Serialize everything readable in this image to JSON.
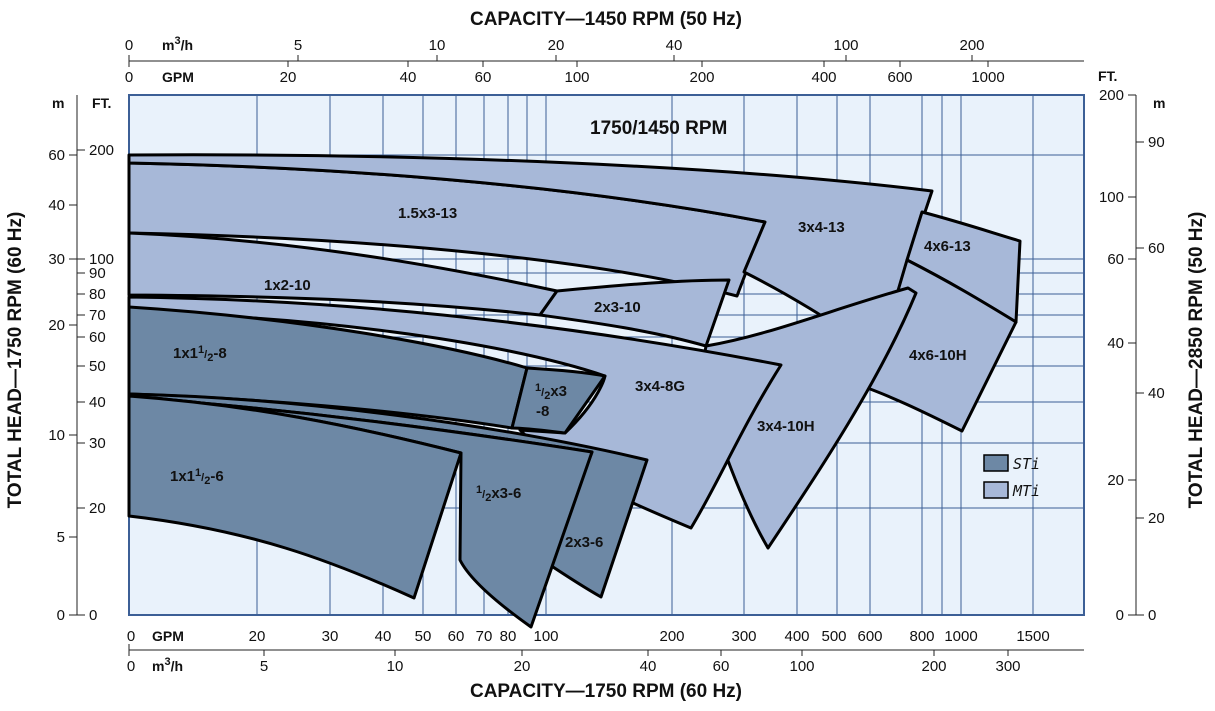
{
  "chart_data": {
    "type": "area",
    "title": "1750/1450 RPM",
    "top_axis_title": "CAPACITY—1450 RPM (50 Hz)",
    "bottom_axis_title": "CAPACITY—1750 RPM (60 Hz)",
    "left_axis_title": "TOTAL HEAD—1750 RPM (60 Hz)",
    "right_axis_title": "TOTAL HEAD—2850 RPM (50 Hz)",
    "scale": "log-log",
    "grid": true,
    "unit_labels": {
      "top_m3h": "m³/h",
      "top_gpm": "GPM",
      "bottom_gpm": "GPM",
      "bottom_m3h": "m³/h",
      "left_m": "m",
      "left_ft": "FT.",
      "right_ft": "FT.",
      "right_m": "m"
    },
    "bottom_gpm_ticks": [
      "0",
      "20",
      "30",
      "40",
      "50",
      "60",
      "70",
      "80",
      "100",
      "200",
      "300",
      "400",
      "500",
      "600",
      "800",
      "1000",
      "1500"
    ],
    "bottom_m3h_ticks": [
      "0",
      "5",
      "10",
      "20",
      "40",
      "60",
      "100",
      "200",
      "300"
    ],
    "top_m3h_ticks": [
      "0",
      "5",
      "10",
      "20",
      "40",
      "100",
      "200"
    ],
    "top_gpm_ticks": [
      "0",
      "20",
      "40",
      "60",
      "100",
      "200",
      "400",
      "600",
      "1000"
    ],
    "left_ft_ticks": [
      "0",
      "20",
      "30",
      "40",
      "50",
      "60",
      "70",
      "80",
      "90",
      "100",
      "200"
    ],
    "left_m_ticks": [
      "0",
      "5",
      "10",
      "20",
      "30",
      "40",
      "60"
    ],
    "right_ft_ticks": [
      "0",
      "20",
      "40",
      "60",
      "100",
      "200"
    ],
    "right_m_ticks": [
      "0",
      "20",
      "40",
      "60",
      "90"
    ],
    "legend": [
      {
        "name": "STi",
        "color": "#6d88a5"
      },
      {
        "name": "MTi",
        "color": "#a7b8d8"
      }
    ],
    "series": [
      {
        "name": "1.5x3-13",
        "group": "MTi",
        "gpm": [
          0,
          110,
          300
        ],
        "head_ft": [
          188,
          165,
          104
        ]
      },
      {
        "name": "3x4-13",
        "group": "MTi",
        "gpm": [
          0,
          400,
          700
        ],
        "head_ft": [
          196,
          185,
          142
        ]
      },
      {
        "name": "4x6-13",
        "group": "MTi",
        "gpm": [
          700,
          1100,
          1350
        ],
        "head_ft": [
          142,
          128,
          105
        ]
      },
      {
        "name": "1x2-10",
        "group": "MTi",
        "gpm": [
          0,
          70,
          100
        ],
        "head_ft": [
          102,
          88,
          75
        ]
      },
      {
        "name": "2x3-10",
        "group": "MTi",
        "gpm": [
          100,
          250,
          460
        ],
        "head_ft": [
          75,
          75,
          66
        ]
      },
      {
        "name": "4x6-10H",
        "group": "MTi",
        "gpm": [
          600,
          1000,
          1350
        ],
        "head_ft": [
          75,
          68,
          58
        ]
      },
      {
        "name": "3x4-10H",
        "group": "MTi",
        "gpm": [
          0,
          200,
          340
        ],
        "head_ft": [
          78,
          65,
          50
        ]
      },
      {
        "name": "3x4-8G",
        "group": "MTi",
        "gpm": [
          0,
          130,
          330
        ],
        "head_ft": [
          70,
          60,
          50
        ]
      },
      {
        "name": "1x1½-8",
        "group": "STi",
        "gpm": [
          0,
          45,
          80
        ],
        "head_ft": [
          72,
          60,
          48
        ]
      },
      {
        "name": "1½x3-8",
        "group": "STi",
        "gpm": [
          80,
          100,
          120
        ],
        "head_ft": [
          48,
          46,
          44
        ]
      },
      {
        "name": "1x1½-6",
        "group": "STi",
        "gpm": [
          0,
          40,
          66
        ],
        "head_ft": [
          41,
          36,
          28
        ]
      },
      {
        "name": "1½x3-6",
        "group": "STi",
        "gpm": [
          66,
          95,
          135
        ],
        "head_ft": [
          28,
          26,
          25
        ]
      },
      {
        "name": "2x3-6",
        "group": "STi",
        "gpm": [
          0,
          100,
          165
        ],
        "head_ft": [
          40,
          34,
          28
        ]
      }
    ]
  }
}
